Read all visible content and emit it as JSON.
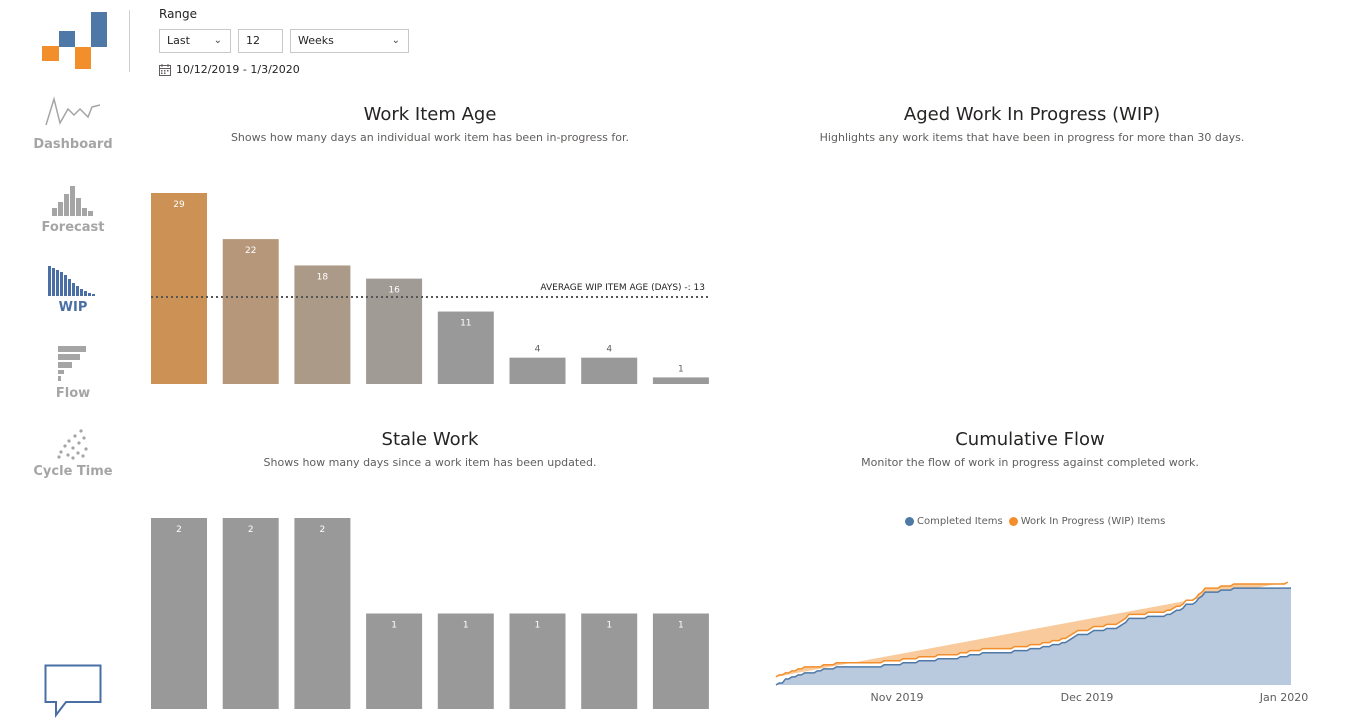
{
  "range": {
    "label": "Range",
    "mode": "Last",
    "count": "12",
    "unit": "Weeks",
    "dates": "10/12/2019 - 1/3/2020"
  },
  "nav": [
    {
      "label": "Dashboard",
      "icon": "line-chart-icon",
      "active": false
    },
    {
      "label": "Forecast",
      "icon": "histogram-icon",
      "active": false
    },
    {
      "label": "WIP",
      "icon": "descending-bars-icon",
      "active": true
    },
    {
      "label": "Flow",
      "icon": "horizontal-bars-icon",
      "active": false
    },
    {
      "label": "Cycle Time",
      "icon": "scatter-icon",
      "active": false
    }
  ],
  "colors": {
    "accent": "#4a6fa5",
    "orange": "#f28e2b",
    "blue": "#4e79a7",
    "gray": "#999999"
  },
  "chart_data": [
    {
      "type": "bar",
      "title": "Work Item Age",
      "subtitle": "Shows how many days an individual work item has been in-progress for.",
      "values": [
        29,
        22,
        18,
        16,
        11,
        4,
        4,
        1
      ],
      "bar_colors": [
        "#cc9154",
        "#b6977a",
        "#ab9a88",
        "#a19b96",
        "#999999",
        "#999999",
        "#999999",
        "#999999"
      ],
      "ylim": [
        0,
        29
      ],
      "reference_line": {
        "label": "AVERAGE WIP ITEM AGE (DAYS) -: 13",
        "value": 13.2
      }
    },
    {
      "type": "bar",
      "title": "Aged Work In Progress (WIP)",
      "subtitle": "Highlights any work items that have been in progress for more than 30 days.",
      "values": []
    },
    {
      "type": "bar",
      "title": "Stale Work",
      "subtitle": "Shows how many days since a work item has been updated.",
      "values": [
        2,
        2,
        2,
        1,
        1,
        1,
        1,
        1
      ],
      "ylim": [
        0,
        2
      ]
    },
    {
      "type": "area",
      "title": "Cumulative Flow",
      "subtitle": "Monitor the flow of work in progress against completed work.",
      "x_ticks": [
        "Nov 2019",
        "Dec 2019",
        "Jan 2020"
      ],
      "series": [
        {
          "name": "Completed Items",
          "color": "#4e79a7",
          "values": [
            0,
            1,
            1,
            3,
            3,
            4,
            4,
            5,
            5,
            6,
            6,
            6,
            6,
            7,
            7,
            8,
            8,
            8,
            8,
            9,
            9,
            9,
            9,
            9,
            9,
            9,
            9,
            9,
            9,
            9,
            9,
            9,
            9,
            9,
            10,
            10,
            10,
            10,
            10,
            10,
            11,
            11,
            11,
            11,
            11,
            12,
            12,
            12,
            12,
            12,
            12,
            13,
            13,
            13,
            13,
            13,
            13,
            13,
            14,
            14,
            14,
            15,
            15,
            15,
            15,
            16,
            16,
            16,
            16,
            16,
            16,
            16,
            16,
            16,
            16,
            17,
            17,
            17,
            17,
            17,
            18,
            18,
            18,
            18,
            19,
            19,
            19,
            20,
            20,
            20,
            21,
            21,
            22,
            23,
            24,
            25,
            25,
            25,
            25,
            26,
            27,
            27,
            27,
            27,
            28,
            28,
            28,
            28,
            29,
            30,
            31,
            33,
            33,
            33,
            33,
            33,
            33,
            34,
            34,
            34,
            34,
            34,
            34,
            35,
            35,
            36,
            37,
            37,
            38,
            40,
            40,
            40,
            41,
            43,
            44,
            46,
            46,
            46,
            46,
            46,
            47,
            47,
            47,
            47,
            48,
            48,
            48,
            48,
            48,
            48,
            48,
            48,
            48,
            48,
            48,
            48,
            48,
            48,
            48,
            48,
            48,
            48,
            48
          ]
        },
        {
          "name": "Work In Progress (WIP) Items",
          "color": "#f28e2b",
          "values": [
            4,
            4,
            4,
            3,
            3,
            3,
            3,
            3,
            3,
            3,
            3,
            3,
            3,
            2,
            2,
            2,
            2,
            2,
            2,
            2,
            2,
            2,
            2,
            2,
            2,
            2,
            2,
            2,
            2,
            2,
            2,
            2,
            2,
            2,
            2,
            2,
            2,
            2,
            2,
            2,
            2,
            2,
            2,
            2,
            2,
            2,
            2,
            2,
            2,
            2,
            2,
            2,
            2,
            2,
            2,
            2,
            2,
            2,
            2,
            2,
            2,
            2,
            2,
            2,
            2,
            2,
            2,
            2,
            2,
            2,
            2,
            2,
            2,
            2,
            2,
            2,
            2,
            2,
            2,
            2,
            2,
            2,
            2,
            2,
            2,
            2,
            2,
            2,
            2,
            2,
            2,
            2,
            2,
            2,
            2,
            2,
            2,
            2,
            2,
            2,
            2,
            2,
            2,
            2,
            2,
            2,
            2,
            2,
            2,
            2,
            2,
            2,
            2,
            2,
            2,
            2,
            2,
            2,
            2,
            2,
            2,
            2,
            2,
            2,
            2,
            2,
            2,
            2,
            2,
            2,
            2,
            2,
            2,
            2,
            2,
            2,
            2,
            2,
            2,
            2,
            2,
            2,
            2,
            2,
            2,
            2,
            2,
            2,
            2,
            2,
            2,
            2,
            2,
            2,
            2,
            2,
            2,
            2,
            2,
            2,
            2,
            3
          ]
        }
      ],
      "ylim": [
        0,
        52
      ],
      "legend": "top-center"
    }
  ]
}
